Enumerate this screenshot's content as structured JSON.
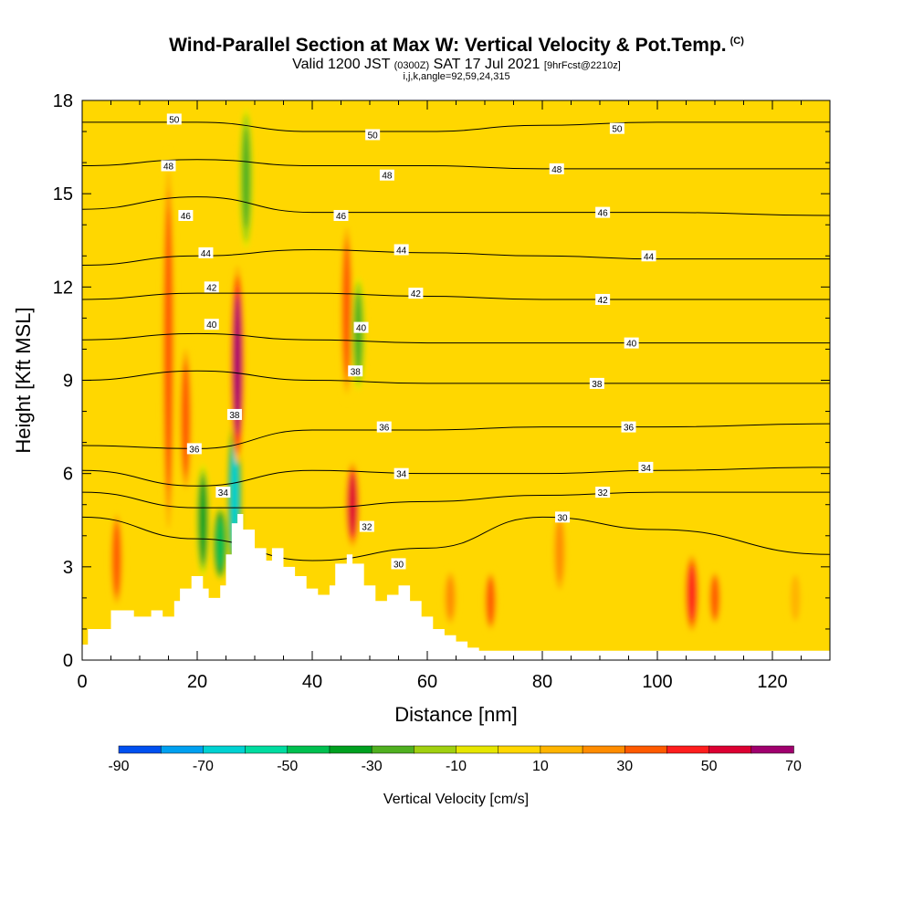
{
  "header": {
    "title": "Wind-Parallel Section at Max W: Vertical Velocity & Pot.Temp.",
    "title_unit": "(C)",
    "valid_prefix": "Valid 1200 JST",
    "valid_utc": "(0300Z)",
    "valid_date": "SAT 17 Jul 2021",
    "forecast": "[9hrFcst@2210z]",
    "indices": "i,j,k,angle=92,59,24,315"
  },
  "chart_data": {
    "type": "heatmap",
    "xlabel": "Distance [nm]",
    "ylabel": "Height [Kft MSL]",
    "xlim": [
      0,
      130
    ],
    "ylim": [
      0,
      18
    ],
    "x_ticks": [
      "0",
      "20",
      "40",
      "60",
      "80",
      "100",
      "120"
    ],
    "y_ticks": [
      "0",
      "3",
      "6",
      "9",
      "12",
      "15",
      "18"
    ],
    "terrain": {
      "x": [
        0,
        1,
        1,
        5,
        5,
        9,
        9,
        12,
        12,
        14,
        14,
        16,
        16,
        17,
        17,
        19,
        19,
        21,
        21,
        22,
        22,
        24,
        24,
        25,
        25,
        26,
        26,
        27,
        27,
        28,
        28,
        30,
        30,
        32,
        32,
        33,
        33,
        35,
        35,
        37,
        37,
        39,
        39,
        41,
        41,
        43,
        43,
        44,
        44,
        46,
        46,
        47,
        47,
        49,
        49,
        51,
        51,
        53,
        53,
        55,
        55,
        57,
        57,
        59,
        59,
        61,
        61,
        63,
        63,
        65,
        65,
        67,
        67,
        69,
        69,
        71,
        71,
        130
      ],
      "height": [
        0.5,
        0.5,
        1.0,
        1.0,
        1.6,
        1.6,
        1.4,
        1.4,
        1.6,
        1.6,
        1.4,
        1.4,
        1.9,
        1.9,
        2.3,
        2.3,
        2.7,
        2.7,
        2.3,
        2.3,
        2.0,
        2.0,
        2.4,
        2.4,
        3.4,
        3.4,
        4.4,
        4.4,
        4.7,
        4.7,
        4.2,
        4.2,
        3.6,
        3.6,
        3.2,
        3.2,
        3.6,
        3.6,
        3.0,
        3.0,
        2.7,
        2.7,
        2.3,
        2.3,
        2.1,
        2.1,
        2.4,
        2.4,
        3.1,
        3.1,
        3.4,
        3.4,
        3.1,
        3.1,
        2.4,
        2.4,
        1.9,
        1.9,
        2.1,
        2.1,
        2.4,
        2.4,
        1.9,
        1.9,
        1.4,
        1.4,
        1.0,
        1.0,
        0.8,
        0.8,
        0.6,
        0.6,
        0.4,
        0.4,
        0.3,
        0.3,
        0.3,
        0.3
      ]
    },
    "colorbar": {
      "label": "Vertical Velocity [cm/s]",
      "tick_labels": [
        "-90",
        "-70",
        "-50",
        "-30",
        "-10",
        "10",
        "30",
        "50",
        "70"
      ],
      "bins": [
        -90,
        -80,
        -70,
        -60,
        -50,
        -40,
        -30,
        -20,
        -10,
        0,
        10,
        20,
        30,
        40,
        50,
        60,
        70
      ],
      "colors": [
        "#0000e6",
        "#0050f0",
        "#00a0f0",
        "#00d2d2",
        "#00dca0",
        "#00c050",
        "#00a020",
        "#50b020",
        "#a0d010",
        "#e6e600",
        "#ffd700",
        "#ffb400",
        "#ff8c00",
        "#ff5a00",
        "#ff1e1e",
        "#dc0032",
        "#a0006e",
        "#6e009b"
      ]
    },
    "vertical_velocity_features": [
      {
        "x": 6,
        "z_bottom": 1.5,
        "z_top": 5.0,
        "w": 35
      },
      {
        "x": 15,
        "z_bottom": 3.0,
        "z_top": 17.0,
        "w": 30
      },
      {
        "x": 18,
        "z_bottom": 5.0,
        "z_top": 10.5,
        "w": 35
      },
      {
        "x": 21,
        "z_bottom": 2.5,
        "z_top": 6.5,
        "w": -35
      },
      {
        "x": 24,
        "z_bottom": 2.5,
        "z_top": 5.0,
        "w": -45
      },
      {
        "x": 26.5,
        "z_bottom": 2.5,
        "z_top": 8.0,
        "w": -65
      },
      {
        "x": 27,
        "z_bottom": 6.0,
        "z_top": 13.0,
        "w": 65
      },
      {
        "x": 28.5,
        "z_bottom": 13.0,
        "z_top": 18.0,
        "w": -25
      },
      {
        "x": 46,
        "z_bottom": 8.0,
        "z_top": 14.5,
        "w": 35
      },
      {
        "x": 47,
        "z_bottom": 3.5,
        "z_top": 6.5,
        "w": 55
      },
      {
        "x": 48,
        "z_bottom": 8.5,
        "z_top": 12.5,
        "w": -25
      },
      {
        "x": 64,
        "z_bottom": 1.0,
        "z_top": 3.0,
        "w": 25
      },
      {
        "x": 71,
        "z_bottom": 0.8,
        "z_top": 3.0,
        "w": 35
      },
      {
        "x": 83,
        "z_bottom": 2.0,
        "z_top": 5.0,
        "w": 20
      },
      {
        "x": 106,
        "z_bottom": 0.8,
        "z_top": 3.5,
        "w": 45
      },
      {
        "x": 110,
        "z_bottom": 1.0,
        "z_top": 3.0,
        "w": 30
      },
      {
        "x": 124,
        "z_bottom": 1.0,
        "z_top": 3.0,
        "w": 15
      }
    ],
    "potential_temperature_contours": [
      {
        "value": 30,
        "x": [
          0,
          20,
          40,
          60,
          80,
          100,
          130
        ],
        "height": [
          4.6,
          3.9,
          3.2,
          3.6,
          4.6,
          4.2,
          3.4
        ]
      },
      {
        "value": 32,
        "x": [
          0,
          20,
          40,
          60,
          80,
          100,
          130
        ],
        "height": [
          5.4,
          4.9,
          4.9,
          5.1,
          5.3,
          5.4,
          5.4
        ]
      },
      {
        "value": 34,
        "x": [
          0,
          20,
          40,
          60,
          80,
          100,
          130
        ],
        "height": [
          6.1,
          5.6,
          6.1,
          6.0,
          6.0,
          6.1,
          6.2
        ]
      },
      {
        "value": 36,
        "x": [
          0,
          20,
          40,
          60,
          80,
          100,
          130
        ],
        "height": [
          6.9,
          6.8,
          7.4,
          7.4,
          7.5,
          7.5,
          7.6
        ]
      },
      {
        "value": 38,
        "x": [
          0,
          20,
          40,
          60,
          80,
          100,
          130
        ],
        "height": [
          9.0,
          9.3,
          9.0,
          8.9,
          8.9,
          8.9,
          8.9
        ]
      },
      {
        "value": 40,
        "x": [
          0,
          20,
          40,
          60,
          80,
          100,
          130
        ],
        "height": [
          10.3,
          10.5,
          10.3,
          10.2,
          10.2,
          10.2,
          10.2
        ]
      },
      {
        "value": 42,
        "x": [
          0,
          20,
          40,
          60,
          80,
          100,
          130
        ],
        "height": [
          11.6,
          11.8,
          11.8,
          11.7,
          11.6,
          11.6,
          11.6
        ]
      },
      {
        "value": 44,
        "x": [
          0,
          20,
          40,
          60,
          80,
          100,
          130
        ],
        "height": [
          12.7,
          13.0,
          13.2,
          13.1,
          13.0,
          12.9,
          12.9
        ]
      },
      {
        "value": 46,
        "x": [
          0,
          20,
          40,
          60,
          80,
          100,
          130
        ],
        "height": [
          14.5,
          14.9,
          14.4,
          14.4,
          14.4,
          14.4,
          14.3
        ]
      },
      {
        "value": 48,
        "x": [
          0,
          20,
          40,
          60,
          80,
          100,
          130
        ],
        "height": [
          15.9,
          16.1,
          15.9,
          15.9,
          15.8,
          15.8,
          15.8
        ]
      },
      {
        "value": 50,
        "x": [
          0,
          20,
          40,
          60,
          80,
          100,
          130
        ],
        "height": [
          17.3,
          17.3,
          17.0,
          17.0,
          17.2,
          17.3,
          17.3
        ]
      }
    ],
    "contour_labels": [
      {
        "text": "50",
        "x": 16,
        "height": 17.4
      },
      {
        "text": "48",
        "x": 15,
        "height": 15.9
      },
      {
        "text": "46",
        "x": 18,
        "height": 14.3
      },
      {
        "text": "44",
        "x": 21.5,
        "height": 13.1
      },
      {
        "text": "42",
        "x": 22.5,
        "height": 12.0
      },
      {
        "text": "40",
        "x": 22.5,
        "height": 10.8
      },
      {
        "text": "38",
        "x": 26.5,
        "height": 7.9
      },
      {
        "text": "36",
        "x": 19.5,
        "height": 6.8
      },
      {
        "text": "34",
        "x": 24.5,
        "height": 5.4
      },
      {
        "text": "50",
        "x": 50.5,
        "height": 16.9
      },
      {
        "text": "48",
        "x": 53,
        "height": 15.6
      },
      {
        "text": "46",
        "x": 45,
        "height": 14.3
      },
      {
        "text": "44",
        "x": 55.5,
        "height": 13.2
      },
      {
        "text": "42",
        "x": 58,
        "height": 11.8
      },
      {
        "text": "40",
        "x": 48.5,
        "height": 10.7
      },
      {
        "text": "38",
        "x": 47.5,
        "height": 9.3
      },
      {
        "text": "36",
        "x": 52.5,
        "height": 7.5
      },
      {
        "text": "34",
        "x": 55.5,
        "height": 6.0
      },
      {
        "text": "32",
        "x": 49.5,
        "height": 4.3
      },
      {
        "text": "30",
        "x": 55,
        "height": 3.1
      },
      {
        "text": "50",
        "x": 93,
        "height": 17.1
      },
      {
        "text": "48",
        "x": 82.5,
        "height": 15.8
      },
      {
        "text": "46",
        "x": 90.5,
        "height": 14.4
      },
      {
        "text": "44",
        "x": 98.5,
        "height": 13.0
      },
      {
        "text": "42",
        "x": 90.5,
        "height": 11.6
      },
      {
        "text": "40",
        "x": 95.5,
        "height": 10.2
      },
      {
        "text": "38",
        "x": 89.5,
        "height": 8.9
      },
      {
        "text": "36",
        "x": 95,
        "height": 7.5
      },
      {
        "text": "34",
        "x": 98,
        "height": 6.2
      },
      {
        "text": "32",
        "x": 90.5,
        "height": 5.4
      },
      {
        "text": "30",
        "x": 83.5,
        "height": 4.6
      }
    ]
  }
}
